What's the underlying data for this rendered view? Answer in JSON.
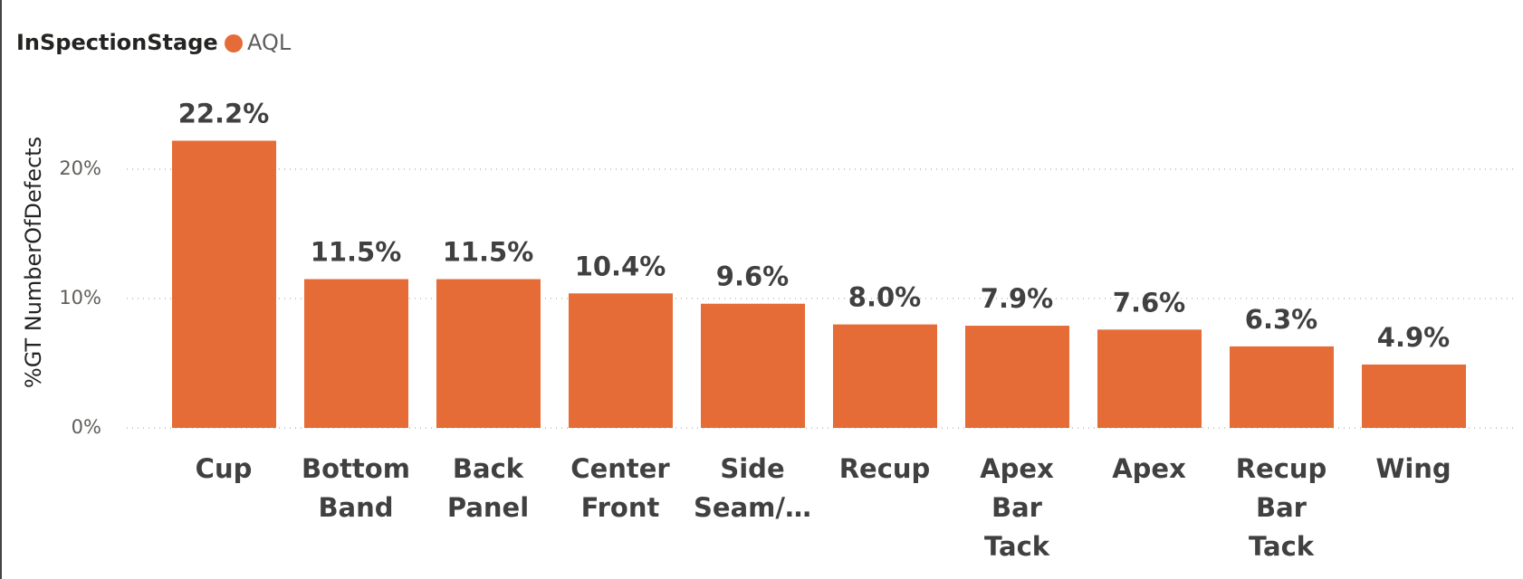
{
  "chart_data": {
    "type": "bar",
    "legend_title": "InSpectionStage",
    "series": [
      {
        "name": "AQL",
        "color": "#E66C37",
        "values": [
          22.2,
          11.5,
          11.5,
          10.4,
          9.6,
          8.0,
          7.9,
          7.6,
          6.3,
          4.9
        ],
        "value_labels": [
          "22.2%",
          "11.5%",
          "11.5%",
          "10.4%",
          "9.6%",
          "8.0%",
          "7.9%",
          "7.6%",
          "6.3%",
          "4.9%"
        ]
      }
    ],
    "categories": [
      "Cup",
      "Bottom Band",
      "Back Panel",
      "Center Front",
      "Side Seam/…",
      "Recup",
      "Apex Bar Tack",
      "Apex",
      "Recup Bar Tack",
      "Wing"
    ],
    "y_label": "%GT NumberOfDefects",
    "ylim": [
      0,
      21.4
    ],
    "yticks": [
      {
        "value": 0,
        "label": "0%"
      },
      {
        "value": 10,
        "label": "10%"
      },
      {
        "value": 20,
        "label": "20%"
      }
    ],
    "grid": true
  }
}
